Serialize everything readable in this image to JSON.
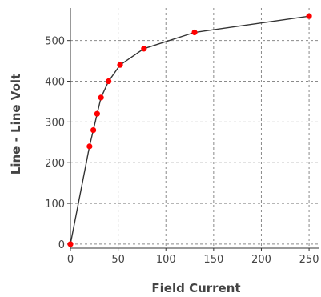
{
  "chart_data": {
    "type": "line",
    "xlabel": "Field Current",
    "ylabel": "Line - Line Volt",
    "xlim": [
      0,
      260
    ],
    "ylim": [
      -10,
      580
    ],
    "xticks": [
      0,
      50,
      100,
      150,
      200,
      250
    ],
    "yticks": [
      0,
      100,
      200,
      300,
      400,
      500
    ],
    "grid": true,
    "series": [
      {
        "line_color": "#333333",
        "marker_color": "#ff0000",
        "x": [
          0,
          20,
          24,
          28,
          32,
          40,
          52,
          77,
          130,
          250
        ],
        "y": [
          0,
          240,
          280,
          320,
          360,
          400,
          440,
          480,
          520,
          560
        ]
      }
    ]
  }
}
